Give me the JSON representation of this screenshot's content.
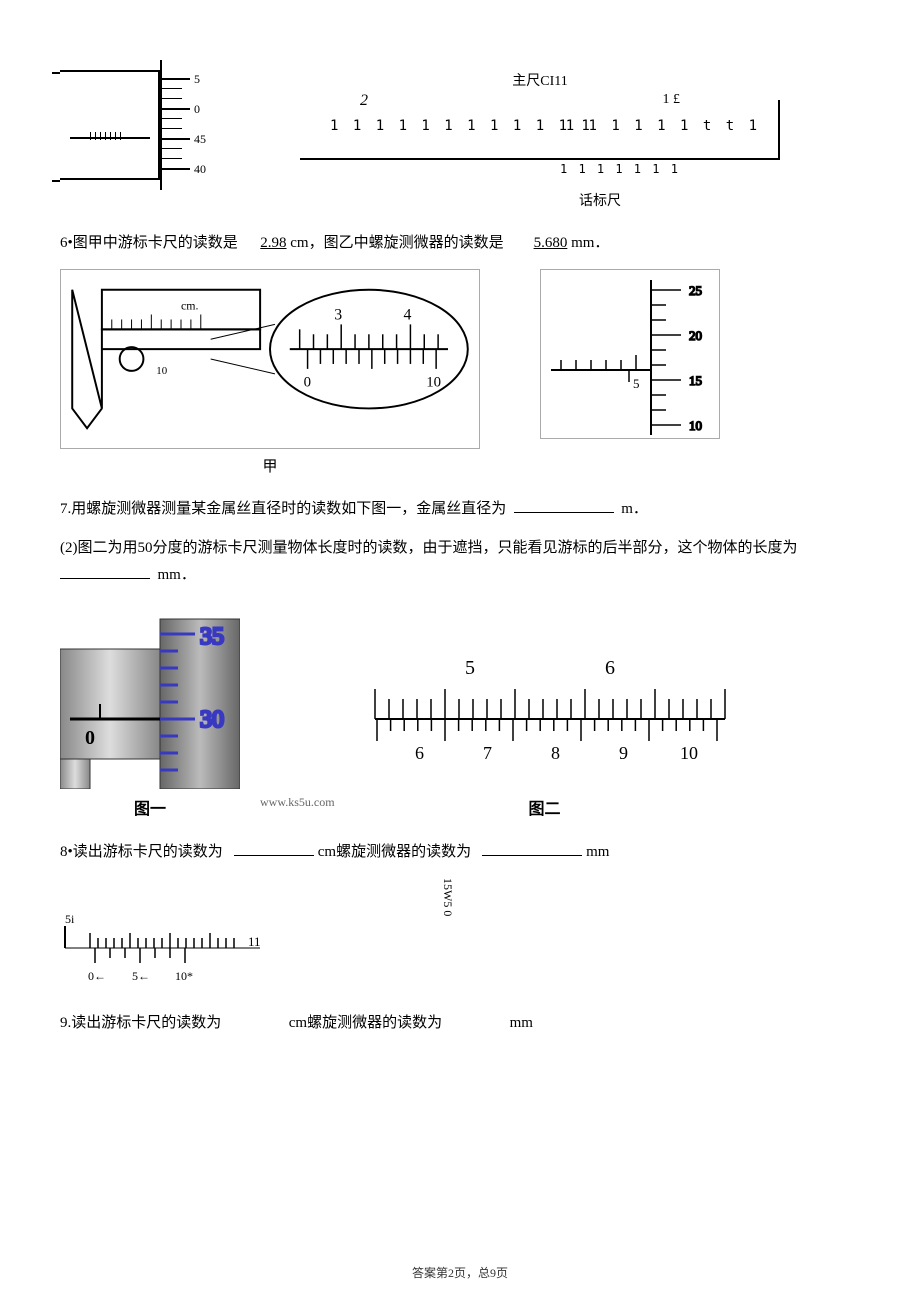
{
  "topruler": {
    "main_label": "主尺CI11",
    "sub_label": "话标尺",
    "num_left": "2",
    "num_right": "1 £",
    "ticks1": "1 1 1 1 1 1 1 1 1 1 1 1",
    "ticks2": "1 1   1   1 1 1 t t 1",
    "vernier_ticks": "1 1 1 1 1 1 1"
  },
  "micrometer_top": {
    "labels": [
      "5",
      "0",
      "45",
      "40"
    ]
  },
  "q6": {
    "prefix": "6•图甲中游标卡尺的读数是",
    "ans1": "2.98",
    "unit1": " cm，图乙中螺旋测微器的读数是",
    "ans2": "5.680",
    "unit2": " mm．",
    "caliper": {
      "cm_label": "cm.",
      "main_nums": [
        "3",
        "4"
      ],
      "vernier_nums": [
        "0",
        "10"
      ]
    },
    "micrometer": {
      "labels": [
        "25",
        "20",
        "15",
        "10"
      ],
      "main_tick": "5"
    },
    "caption": "甲"
  },
  "q7": {
    "line1_a": "7.用螺旋测微器测量某金属丝直径时的读数如下图一，金属丝直径为",
    "line1_b": "m．",
    "line2_a": "(2)图二为用50分度的游标卡尺测量物体长度时的读数，由于遮挡，只能看见游标的后半部分，这个物体的长度为",
    "line2_b": "mm．",
    "fig1": {
      "labels": [
        "35",
        "30"
      ],
      "zero": "0"
    },
    "fig2": {
      "top_nums": [
        "5",
        "6"
      ],
      "bot_nums": [
        "6",
        "7",
        "8",
        "9",
        "10"
      ]
    },
    "cap1": "图一",
    "cap2": "图二",
    "watermark": "www.ks5u.com"
  },
  "q8": {
    "text_a": "8•读出游标卡尺的读数为",
    "text_b": "cm螺旋测微器的读数为",
    "text_c": "mm",
    "caliper": {
      "l5i": "5i",
      "r11": "11",
      "nums": [
        "0←",
        "5←",
        "10*"
      ]
    },
    "micro_label": "15W5 0"
  },
  "q9": {
    "text_a": "9.读出游标卡尺的读数为",
    "text_b": "cm螺旋测微器的读数为",
    "text_c": "mm"
  },
  "footer": {
    "text": "答案第2页，总9页"
  }
}
